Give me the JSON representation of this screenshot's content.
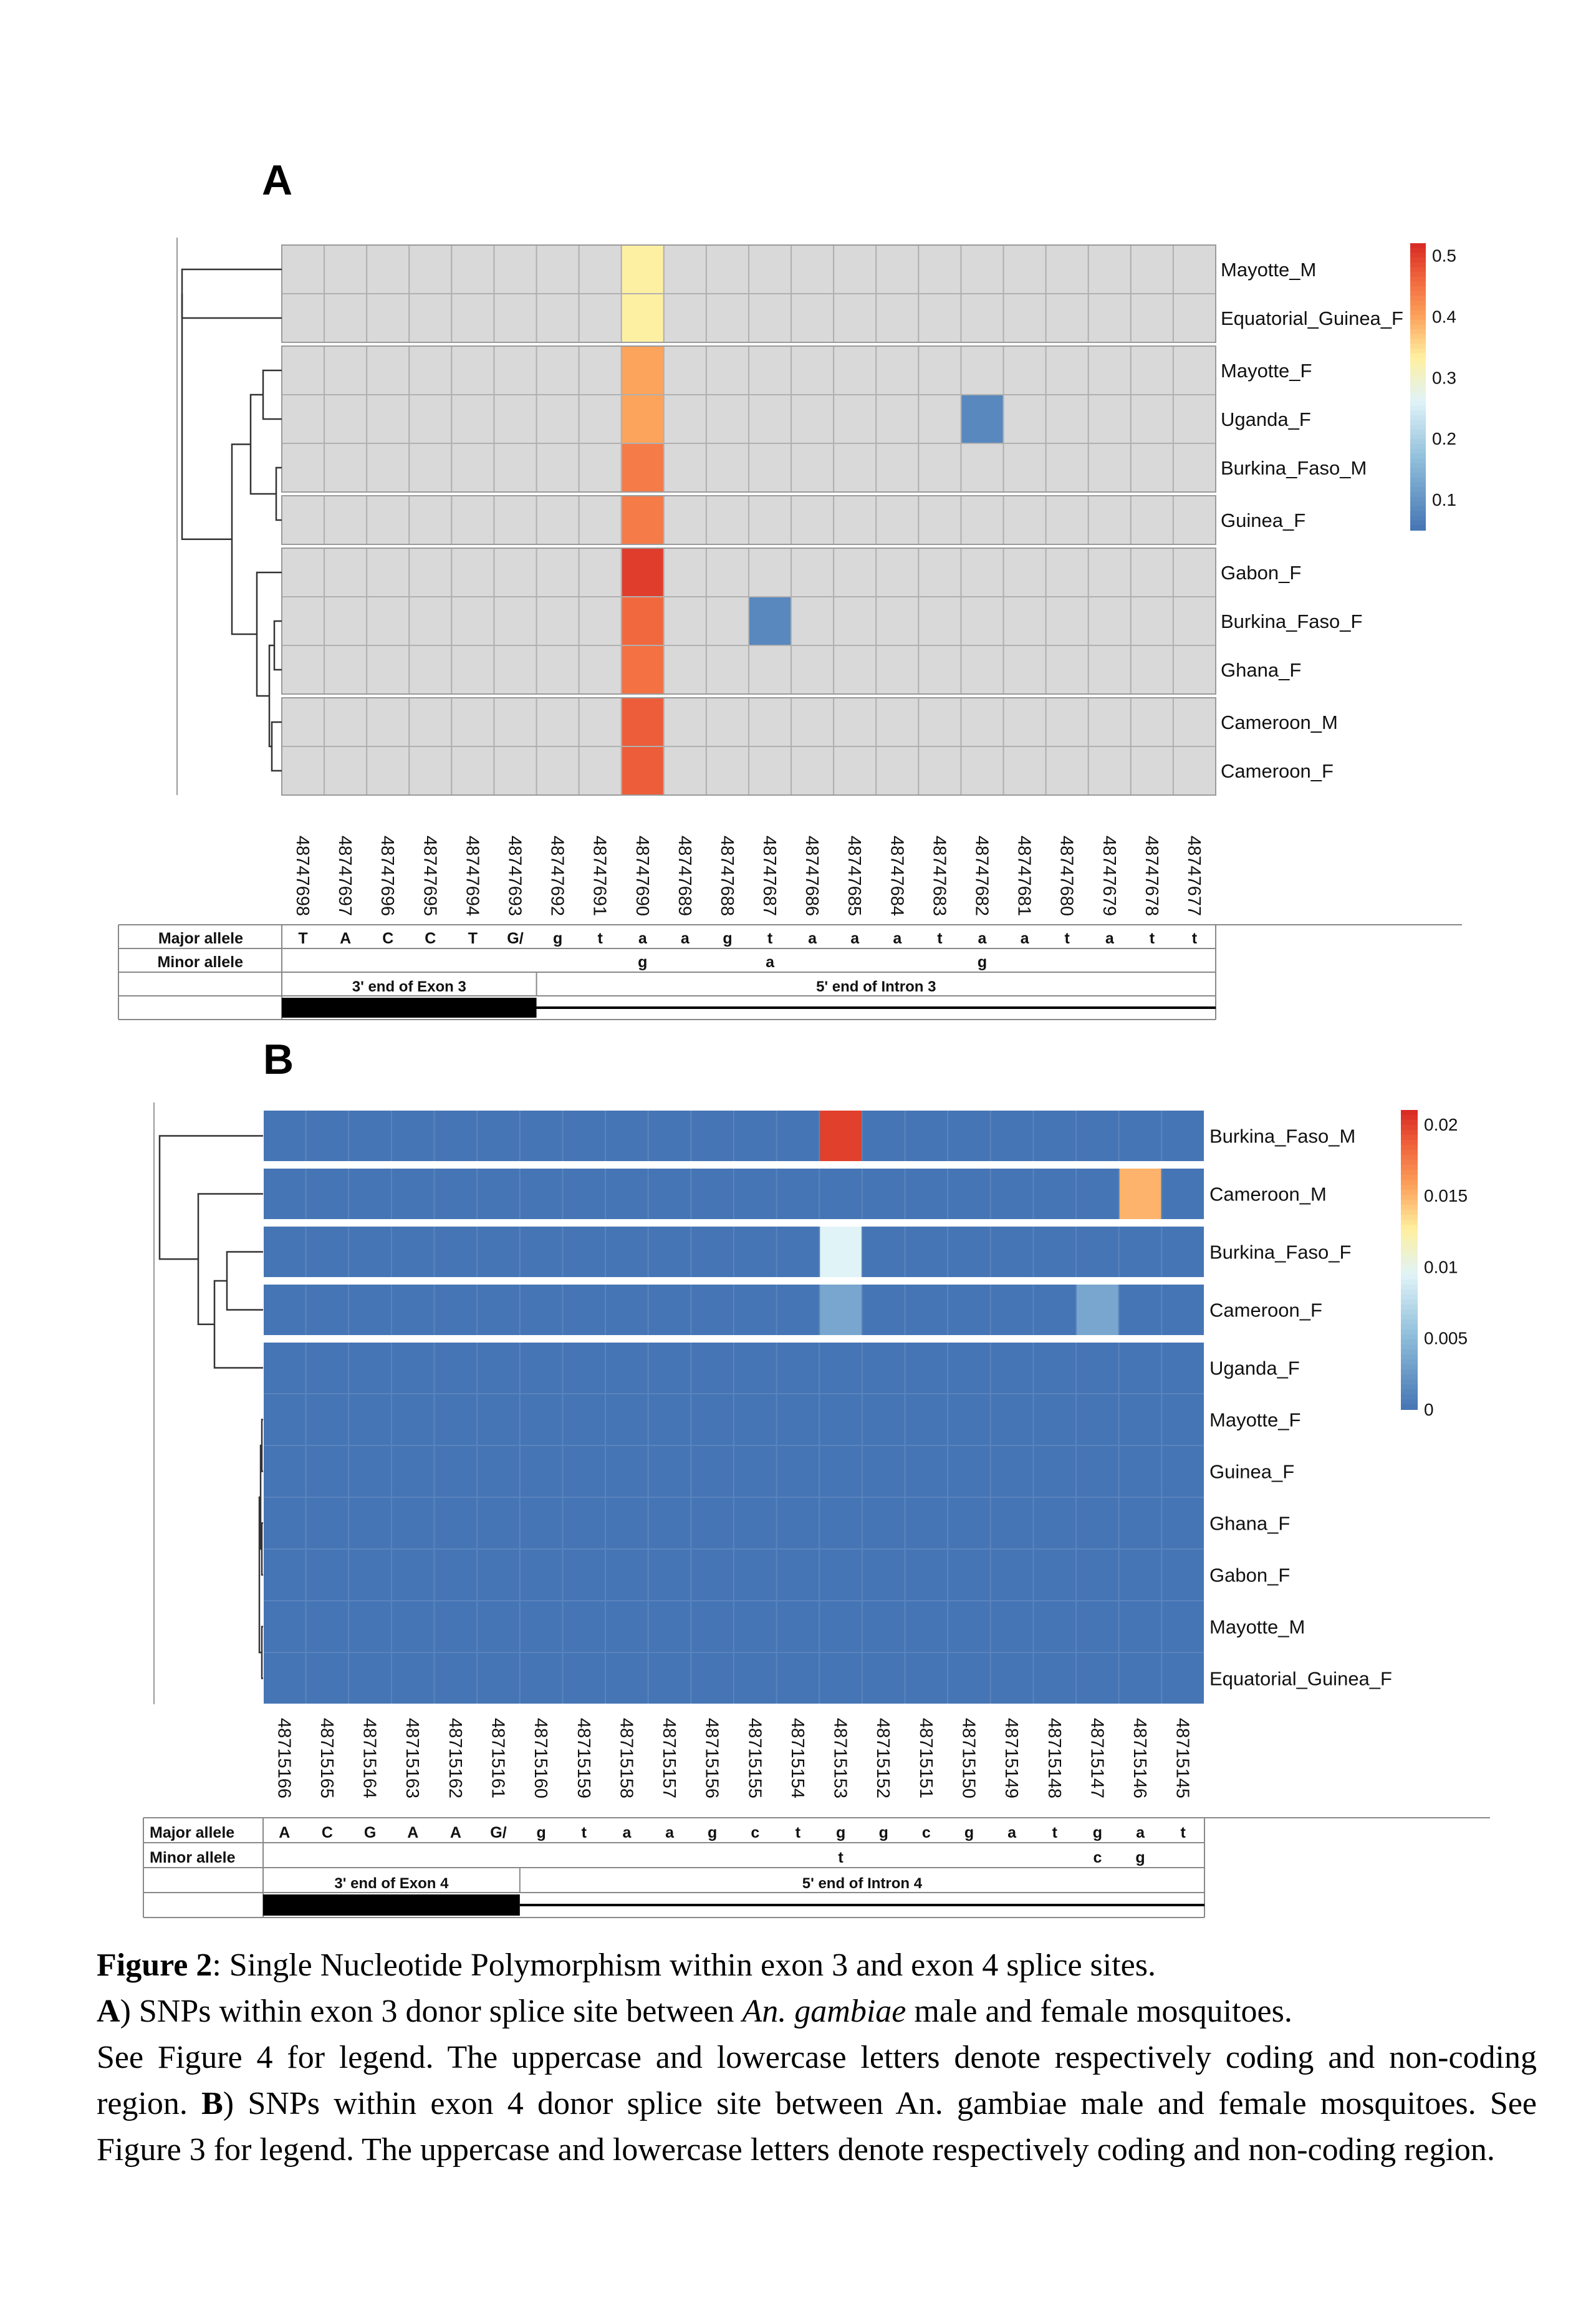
{
  "figure": {
    "caption": {
      "title_label": "Figure 2",
      "title_text": ": Single Nucleotide Polymorphism within exon 3 and exon 4 splice sites.",
      "line_a_label": "A",
      "line_a_pre": ") SNPs within exon 3 donor splice site between ",
      "line_a_species": "An. gambiae",
      "line_a_post": " male and female mosquitoes.",
      "line_a_cont": "See Figure 4 for legend. The uppercase and lowercase letters denote respectively coding and non-coding region. ",
      "line_b_label": "B",
      "line_b_text": ") SNPs within exon 4 donor splice site between An. gambiae male and female mosquitoes. See Figure 3 for legend. The uppercase and lowercase letters denote respectively coding and non-coding region."
    }
  },
  "chart_data": [
    {
      "type": "heatmap",
      "panel": "A",
      "rows": [
        "Mayotte_M",
        "Equatorial_Guinea_F",
        "Mayotte_F",
        "Uganda_F",
        "Burkina_Faso_M",
        "Guinea_F",
        "Gabon_F",
        "Burkina_Faso_F",
        "Ghana_F",
        "Cameroon_M",
        "Cameroon_F"
      ],
      "columns": [
        "48747698",
        "48747697",
        "48747696",
        "48747695",
        "48747694",
        "48747693",
        "48747692",
        "48747691",
        "48747690",
        "48747689",
        "48747688",
        "48747687",
        "48747686",
        "48747685",
        "48747684",
        "48747683",
        "48747682",
        "48747681",
        "48747680",
        "48747679",
        "48747678",
        "48747677"
      ],
      "row_groups": [
        [
          0,
          1
        ],
        [
          2,
          3,
          4
        ],
        [
          5
        ],
        [
          6,
          7,
          8
        ],
        [
          9,
          10
        ]
      ],
      "cells": [
        {
          "row": 0,
          "col": 8,
          "value": 0.33
        },
        {
          "row": 1,
          "col": 8,
          "value": 0.33
        },
        {
          "row": 2,
          "col": 8,
          "value": 0.4
        },
        {
          "row": 3,
          "col": 8,
          "value": 0.4
        },
        {
          "row": 3,
          "col": 16,
          "value": 0.08
        },
        {
          "row": 4,
          "col": 8,
          "value": 0.44
        },
        {
          "row": 5,
          "col": 8,
          "value": 0.44
        },
        {
          "row": 6,
          "col": 8,
          "value": 0.5
        },
        {
          "row": 7,
          "col": 8,
          "value": 0.46
        },
        {
          "row": 7,
          "col": 11,
          "value": 0.08
        },
        {
          "row": 8,
          "col": 8,
          "value": 0.45
        },
        {
          "row": 9,
          "col": 8,
          "value": 0.47
        },
        {
          "row": 10,
          "col": 8,
          "value": 0.47
        }
      ],
      "empty_color": "#d9d9d9",
      "colorbar": {
        "ticks": [
          "0.5",
          "0.4",
          "0.3",
          "0.2",
          "0.1"
        ],
        "tick_values": [
          0.5,
          0.4,
          0.3,
          0.2,
          0.1
        ],
        "min": 0.05,
        "max": 0.52
      },
      "allele_table": {
        "major_label": "Major allele",
        "minor_label": "Minor allele",
        "major": [
          "T",
          "A",
          "C",
          "C",
          "T",
          "G/",
          "g",
          "t",
          "a",
          "a",
          "g",
          "t",
          "a",
          "a",
          "a",
          "t",
          "a",
          "a",
          "t",
          "a",
          "t",
          "t"
        ],
        "minor": [
          "",
          "",
          "",
          "",
          "",
          "",
          "",
          "",
          "g",
          "",
          "",
          "a",
          "",
          "",
          "",
          "",
          "g",
          "",
          "",
          "",
          "",
          ""
        ],
        "exon_label": "3' end of Exon 3",
        "intron_label": "5' end of Intron 3",
        "exon_cols": 6
      }
    },
    {
      "type": "heatmap",
      "panel": "B",
      "rows": [
        "Burkina_Faso_M",
        "Cameroon_M",
        "Burkina_Faso_F",
        "Cameroon_F",
        "Uganda_F",
        "Mayotte_F",
        "Guinea_F",
        "Ghana_F",
        "Gabon_F",
        "Mayotte_M",
        "Equatorial_Guinea_F"
      ],
      "columns": [
        "48715166",
        "48715165",
        "48715164",
        "48715163",
        "48715162",
        "48715161",
        "48715160",
        "48715159",
        "48715158",
        "48715157",
        "48715156",
        "48715155",
        "48715154",
        "48715153",
        "48715152",
        "48715151",
        "48715150",
        "48715149",
        "48715148",
        "48715147",
        "48715146",
        "48715145"
      ],
      "row_groups": [
        [
          0
        ],
        [
          1
        ],
        [
          2
        ],
        [
          3
        ],
        [
          4,
          5,
          6,
          7,
          8,
          9,
          10
        ]
      ],
      "cells": [
        {
          "row": 0,
          "col": 13,
          "value": 0.02
        },
        {
          "row": 1,
          "col": 20,
          "value": 0.015
        },
        {
          "row": 2,
          "col": 13,
          "value": 0.0095
        },
        {
          "row": 3,
          "col": 13,
          "value": 0.0035
        },
        {
          "row": 3,
          "col": 19,
          "value": 0.0035
        }
      ],
      "default_value": 0,
      "colorbar": {
        "ticks": [
          "0.02",
          "0.015",
          "0.01",
          "0.005",
          "0"
        ],
        "tick_values": [
          0.02,
          0.015,
          0.01,
          0.005,
          0
        ],
        "min": 0,
        "max": 0.021
      },
      "allele_table": {
        "major_label": "Major allele",
        "minor_label": "Minor allele",
        "major": [
          "A",
          "C",
          "G",
          "A",
          "A",
          "G/",
          "g",
          "t",
          "a",
          "a",
          "g",
          "c",
          "t",
          "g",
          "g",
          "c",
          "g",
          "a",
          "t",
          "g",
          "a",
          "t"
        ],
        "minor": [
          "",
          "",
          "",
          "",
          "",
          "",
          "",
          "",
          "",
          "",
          "",
          "",
          "",
          "t",
          "",
          "",
          "",
          "",
          "",
          "c",
          "g",
          ""
        ],
        "exon_label": "3' end of Exon 4",
        "intron_label": "5' end of Intron 4",
        "exon_cols": 6
      }
    }
  ]
}
